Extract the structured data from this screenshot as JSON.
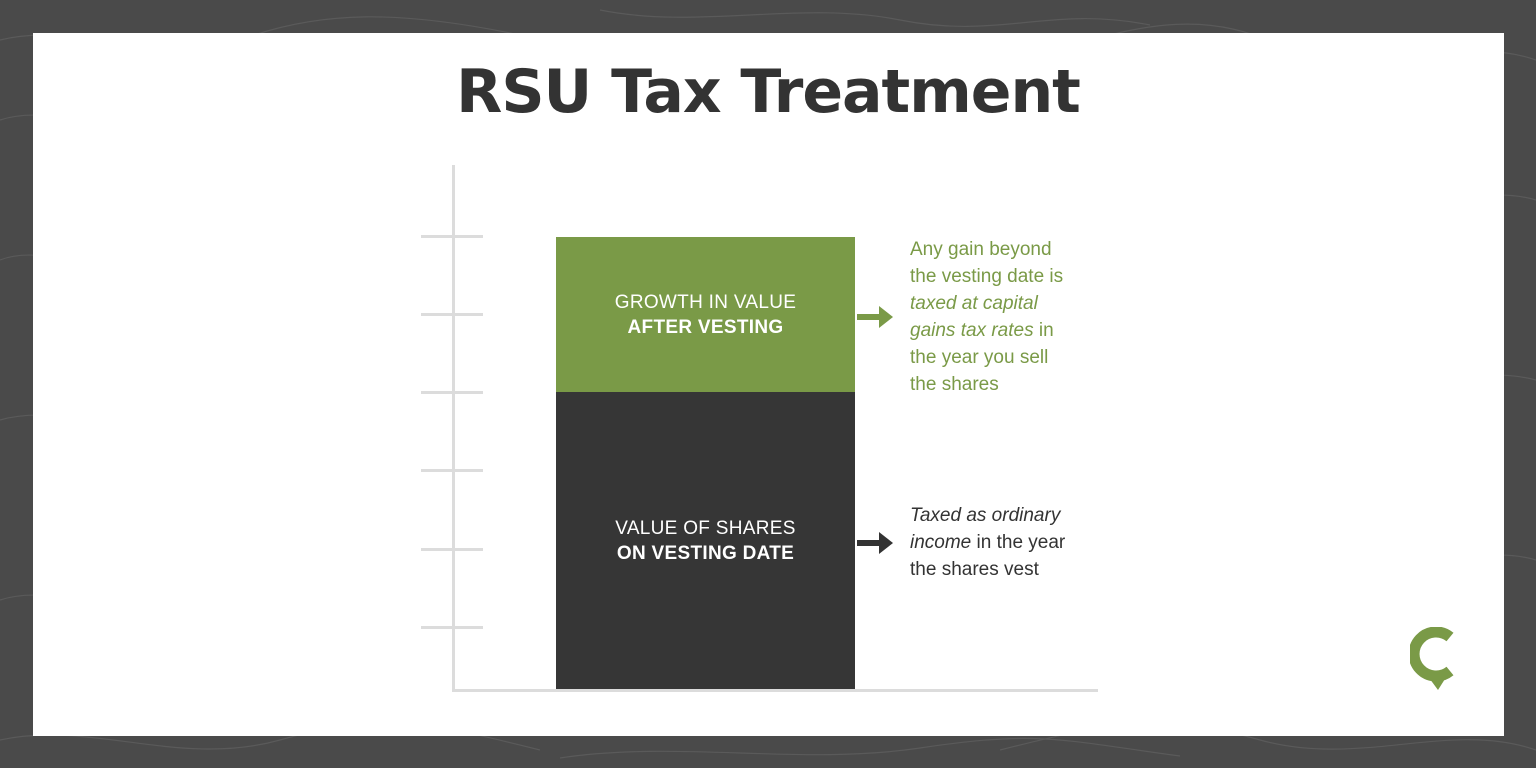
{
  "title": "RSU Tax Treatment",
  "colors": {
    "green": "#7a9a47",
    "dark": "#363636",
    "frame": "#4a4a4a",
    "axis": "#dcdcdc",
    "text_dark": "#333333"
  },
  "chart_data": {
    "type": "bar",
    "stacked": true,
    "categories": [
      ""
    ],
    "series": [
      {
        "name": "VALUE OF SHARES ON VESTING DATE",
        "values": [
          3.8
        ]
      },
      {
        "name": "GROWTH IN VALUE AFTER VESTING",
        "values": [
          2.0
        ]
      }
    ],
    "ylim": [
      0,
      6.7
    ],
    "y_ticks_labeled": false,
    "grid": false
  },
  "bars": {
    "top": {
      "line1": "GROWTH IN VALUE",
      "line2": "AFTER VESTING"
    },
    "bottom": {
      "line1": "VALUE OF SHARES",
      "line2": "ON VESTING DATE"
    }
  },
  "notes": {
    "top": {
      "line1": "Any gain beyond",
      "line2": "the vesting date is",
      "line3_italic": "taxed at capital",
      "line4_italic": "gains tax rates",
      "line4_rest": " in",
      "line5": "the year you sell",
      "line6": "the shares"
    },
    "bottom": {
      "line1_italic": "Taxed as ordinary",
      "line2_italic": "income",
      "line2_rest": " in the year",
      "line3": "the shares vest"
    }
  },
  "logo_icon": "location-pin-c-logo-icon"
}
